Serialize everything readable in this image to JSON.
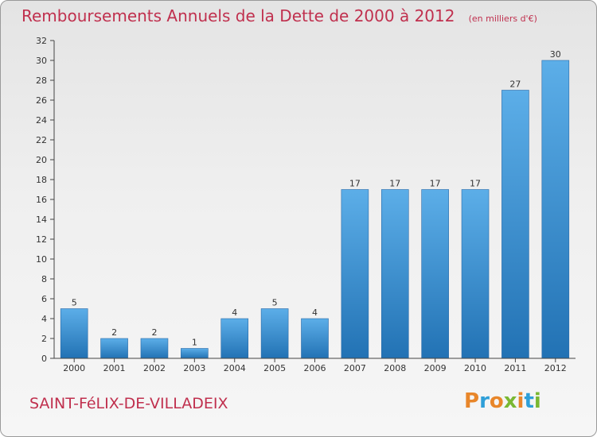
{
  "chart_data": {
    "type": "bar",
    "title": "Remboursements Annuels de la Dette de 2000 à 2012",
    "subtitle": "(en milliers d'€)",
    "categories": [
      "2000",
      "2001",
      "2002",
      "2003",
      "2004",
      "2005",
      "2006",
      "2007",
      "2008",
      "2009",
      "2010",
      "2011",
      "2012"
    ],
    "values": [
      5,
      2,
      2,
      1,
      4,
      5,
      4,
      17,
      17,
      17,
      17,
      27,
      30
    ],
    "ylim": [
      0,
      32
    ],
    "yticks": [
      0,
      2,
      4,
      6,
      8,
      10,
      12,
      14,
      16,
      18,
      20,
      22,
      24,
      26,
      28,
      30,
      32
    ],
    "xlabel": "",
    "ylabel": "",
    "grid": false,
    "legend": "none",
    "bar_color_top": "#5caee8",
    "bar_color_bottom": "#2272b4",
    "title_color": "#c0304e"
  },
  "footer": {
    "place_name": "SAINT-FéLIX-DE-VILLADEIX",
    "logo_text": "Proxiti",
    "logo_colors": [
      "#e8862a",
      "#2f9fd8",
      "#e8862a",
      "#7ab833",
      "#e8862a",
      "#2f9fd8",
      "#7ab833"
    ]
  }
}
